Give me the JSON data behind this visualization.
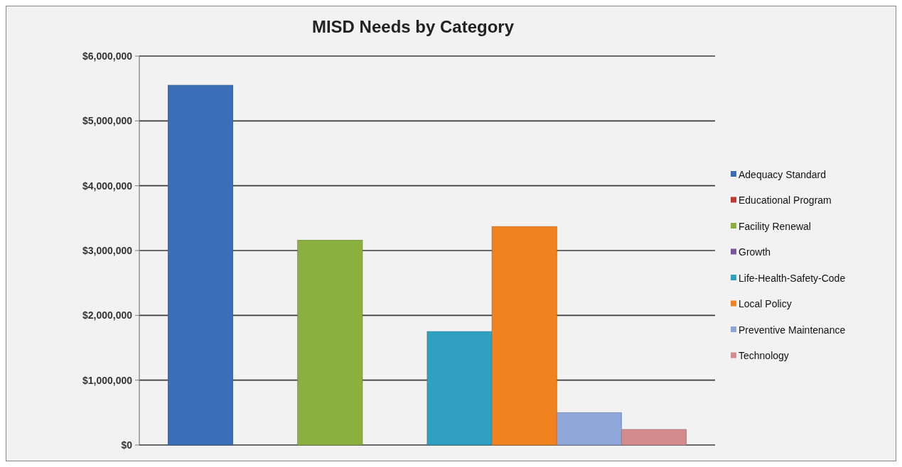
{
  "chart_data": {
    "type": "bar",
    "title": "MISD Needs by Category",
    "categories": [
      null
    ],
    "series": [
      {
        "name": "Adequacy Standard",
        "color": "#3a6fb8",
        "values": [
          5550000
        ]
      },
      {
        "name": "Educational Program",
        "color": "#be3a34",
        "values": [
          0
        ]
      },
      {
        "name": "Facility Renewal",
        "color": "#8bb040",
        "values": [
          3160000
        ]
      },
      {
        "name": "Growth",
        "color": "#7a56a0",
        "values": [
          0
        ]
      },
      {
        "name": "Life-Health-Safety-Code",
        "color": "#2fa0c0",
        "values": [
          1750000
        ]
      },
      {
        "name": "Local Policy",
        "color": "#f0821f",
        "values": [
          3370000
        ]
      },
      {
        "name": "Preventive Maintenance",
        "color": "#8ea6d8",
        "values": [
          500000
        ]
      },
      {
        "name": "Technology",
        "color": "#d48b8b",
        "values": [
          240000
        ]
      }
    ],
    "ylim": [
      0,
      6000000
    ],
    "yticks": [
      {
        "value": 0,
        "label": "$0"
      },
      {
        "value": 1000000,
        "label": "$1,000,000"
      },
      {
        "value": 2000000,
        "label": "$2,000,000"
      },
      {
        "value": 3000000,
        "label": "$3,000,000"
      },
      {
        "value": 4000000,
        "label": "$4,000,000"
      },
      {
        "value": 5000000,
        "label": "$5,000,000"
      },
      {
        "value": 6000000,
        "label": "$6,000,000"
      }
    ],
    "grid": "y",
    "legend": "right"
  }
}
